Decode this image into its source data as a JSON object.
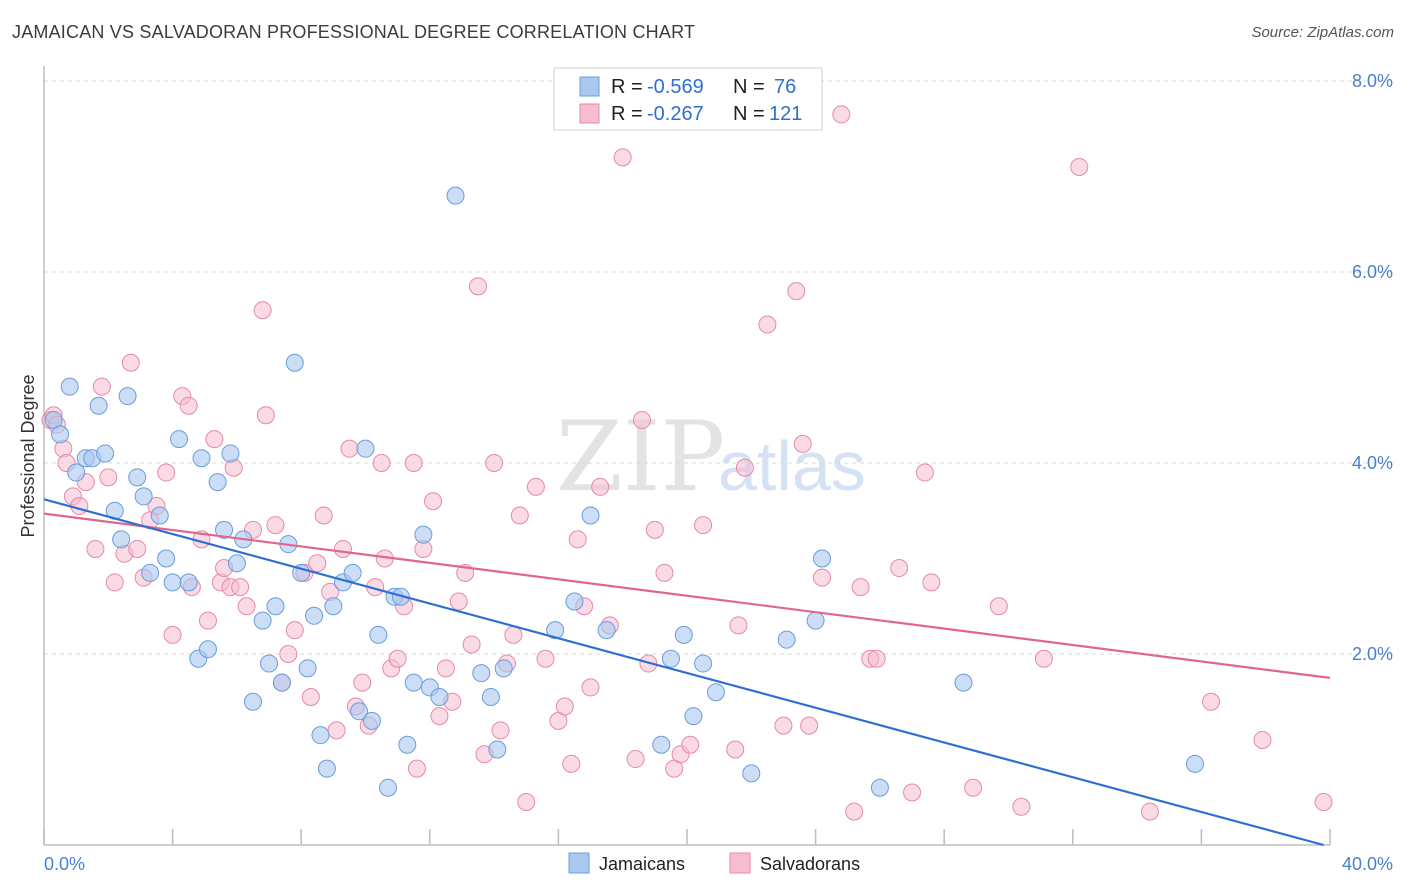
{
  "header": {
    "title": "JAMAICAN VS SALVADORAN PROFESSIONAL DEGREE CORRELATION CHART",
    "source": "Source: ZipAtlas.com"
  },
  "watermark": {
    "zip": "ZIP",
    "atlas": "atlas"
  },
  "legend": {
    "rows": [
      {
        "r_label": "R =",
        "r_value": "-0.569",
        "n_label": "N =",
        "n_value": "76",
        "color": "#a9c8f0"
      },
      {
        "r_label": "R =",
        "r_value": "-0.267",
        "n_label": "N =",
        "n_value": "121",
        "color": "#f6bcd0"
      }
    ]
  },
  "bottom_legend": {
    "jamaicans": "Jamaicans",
    "salvadorans": "Salvadorans"
  },
  "colors": {
    "jamaicans_fill": "#a9c8f0",
    "jamaicans_stroke": "#6a9ddc",
    "jamaicans_line": "#2f6fd1",
    "salvadorans_fill": "#f6bcd0",
    "salvadorans_stroke": "#e58aaa",
    "salvadorans_line": "#e06690",
    "tick_text": "#4a7fd0",
    "grid": "#d9d9d9"
  },
  "chart_data": {
    "type": "scatter",
    "title": "JAMAICAN VS SALVADORAN PROFESSIONAL DEGREE CORRELATION CHART",
    "xlabel": "",
    "ylabel": "Professional Degree",
    "xlim": [
      0,
      40
    ],
    "ylim": [
      0,
      8
    ],
    "x_tick_labels": [
      "0.0%",
      "40.0%"
    ],
    "y_ticks": [
      2,
      4,
      6,
      8
    ],
    "y_tick_labels": [
      "2.0%",
      "4.0%",
      "6.0%",
      "8.0%"
    ],
    "grid": true,
    "legend_position": "top-center",
    "series": [
      {
        "name": "Jamaicans",
        "r": -0.569,
        "n": 76,
        "trend": [
          [
            0,
            3.62
          ],
          [
            39.8,
            0.0
          ]
        ],
        "points": [
          [
            0.3,
            4.45
          ],
          [
            0.5,
            4.3
          ],
          [
            0.8,
            4.8
          ],
          [
            1.0,
            3.9
          ],
          [
            1.3,
            4.05
          ],
          [
            1.5,
            4.05
          ],
          [
            1.7,
            4.6
          ],
          [
            1.9,
            4.1
          ],
          [
            2.2,
            3.5
          ],
          [
            2.4,
            3.2
          ],
          [
            2.6,
            4.7
          ],
          [
            2.9,
            3.85
          ],
          [
            3.1,
            3.65
          ],
          [
            3.3,
            2.85
          ],
          [
            3.6,
            3.45
          ],
          [
            3.8,
            3.0
          ],
          [
            4.0,
            2.75
          ],
          [
            4.2,
            4.25
          ],
          [
            4.5,
            2.75
          ],
          [
            4.8,
            1.95
          ],
          [
            4.9,
            4.05
          ],
          [
            5.1,
            2.05
          ],
          [
            5.4,
            3.8
          ],
          [
            5.6,
            3.3
          ],
          [
            5.8,
            4.1
          ],
          [
            6.0,
            2.95
          ],
          [
            6.2,
            3.2
          ],
          [
            6.5,
            1.5
          ],
          [
            6.8,
            2.35
          ],
          [
            7.0,
            1.9
          ],
          [
            7.2,
            2.5
          ],
          [
            7.4,
            1.7
          ],
          [
            7.6,
            3.15
          ],
          [
            7.8,
            5.05
          ],
          [
            8.0,
            2.85
          ],
          [
            8.2,
            1.85
          ],
          [
            8.4,
            2.4
          ],
          [
            8.6,
            1.15
          ],
          [
            8.8,
            0.8
          ],
          [
            9.0,
            2.5
          ],
          [
            9.3,
            2.75
          ],
          [
            9.6,
            2.85
          ],
          [
            9.8,
            1.4
          ],
          [
            10.0,
            4.15
          ],
          [
            10.2,
            1.3
          ],
          [
            10.4,
            2.2
          ],
          [
            10.7,
            0.6
          ],
          [
            10.9,
            2.6
          ],
          [
            11.1,
            2.6
          ],
          [
            11.3,
            1.05
          ],
          [
            11.5,
            1.7
          ],
          [
            11.8,
            3.25
          ],
          [
            12.0,
            1.65
          ],
          [
            12.3,
            1.55
          ],
          [
            12.8,
            6.8
          ],
          [
            13.6,
            1.8
          ],
          [
            13.9,
            1.55
          ],
          [
            14.1,
            1.0
          ],
          [
            14.3,
            1.85
          ],
          [
            15.9,
            2.25
          ],
          [
            16.5,
            2.55
          ],
          [
            17.0,
            3.45
          ],
          [
            17.5,
            2.25
          ],
          [
            19.2,
            1.05
          ],
          [
            19.5,
            1.95
          ],
          [
            19.9,
            2.2
          ],
          [
            20.2,
            1.35
          ],
          [
            20.5,
            1.9
          ],
          [
            20.9,
            1.6
          ],
          [
            22.0,
            0.75
          ],
          [
            23.1,
            2.15
          ],
          [
            24.0,
            2.35
          ],
          [
            24.2,
            3.0
          ],
          [
            26.0,
            0.6
          ],
          [
            28.6,
            1.7
          ],
          [
            35.8,
            0.85
          ]
        ]
      },
      {
        "name": "Salvadorans",
        "r": -0.267,
        "n": 121,
        "trend": [
          [
            0,
            3.47
          ],
          [
            40,
            1.75
          ]
        ],
        "points": [
          [
            0.2,
            4.45
          ],
          [
            0.3,
            4.5
          ],
          [
            0.4,
            4.4
          ],
          [
            0.6,
            4.15
          ],
          [
            0.7,
            4.0
          ],
          [
            0.9,
            3.65
          ],
          [
            1.1,
            3.55
          ],
          [
            1.3,
            3.8
          ],
          [
            1.6,
            3.1
          ],
          [
            1.8,
            4.8
          ],
          [
            2.0,
            3.85
          ],
          [
            2.2,
            2.75
          ],
          [
            2.5,
            3.05
          ],
          [
            2.7,
            5.05
          ],
          [
            2.9,
            3.1
          ],
          [
            3.1,
            2.8
          ],
          [
            3.3,
            3.4
          ],
          [
            3.5,
            3.55
          ],
          [
            3.8,
            3.9
          ],
          [
            4.0,
            2.2
          ],
          [
            4.3,
            4.7
          ],
          [
            4.5,
            4.6
          ],
          [
            4.6,
            2.7
          ],
          [
            4.9,
            3.2
          ],
          [
            5.1,
            2.35
          ],
          [
            5.3,
            4.25
          ],
          [
            5.5,
            2.75
          ],
          [
            5.6,
            2.9
          ],
          [
            5.8,
            2.7
          ],
          [
            5.9,
            3.95
          ],
          [
            6.1,
            2.7
          ],
          [
            6.3,
            2.5
          ],
          [
            6.5,
            3.3
          ],
          [
            6.8,
            5.6
          ],
          [
            6.9,
            4.5
          ],
          [
            7.2,
            3.35
          ],
          [
            7.4,
            1.7
          ],
          [
            7.6,
            2.0
          ],
          [
            7.8,
            2.25
          ],
          [
            8.1,
            2.85
          ],
          [
            8.3,
            1.55
          ],
          [
            8.5,
            2.95
          ],
          [
            8.7,
            3.45
          ],
          [
            8.9,
            2.65
          ],
          [
            9.1,
            1.2
          ],
          [
            9.3,
            3.1
          ],
          [
            9.5,
            4.15
          ],
          [
            9.7,
            1.45
          ],
          [
            9.9,
            1.7
          ],
          [
            10.1,
            1.25
          ],
          [
            10.3,
            2.7
          ],
          [
            10.5,
            4.0
          ],
          [
            10.6,
            3.0
          ],
          [
            10.8,
            1.85
          ],
          [
            11.0,
            1.95
          ],
          [
            11.2,
            2.5
          ],
          [
            11.5,
            4.0
          ],
          [
            11.6,
            0.8
          ],
          [
            11.8,
            3.1
          ],
          [
            12.1,
            3.6
          ],
          [
            12.3,
            1.35
          ],
          [
            12.5,
            1.85
          ],
          [
            12.7,
            1.5
          ],
          [
            12.9,
            2.55
          ],
          [
            13.1,
            2.85
          ],
          [
            13.3,
            2.1
          ],
          [
            13.5,
            5.85
          ],
          [
            13.7,
            0.95
          ],
          [
            14.0,
            4.0
          ],
          [
            14.2,
            1.2
          ],
          [
            14.4,
            1.9
          ],
          [
            14.6,
            2.2
          ],
          [
            14.8,
            3.45
          ],
          [
            15.0,
            0.45
          ],
          [
            15.3,
            3.75
          ],
          [
            15.6,
            1.95
          ],
          [
            16.0,
            1.3
          ],
          [
            16.2,
            1.45
          ],
          [
            16.4,
            0.85
          ],
          [
            16.6,
            3.2
          ],
          [
            16.8,
            2.5
          ],
          [
            17.0,
            1.65
          ],
          [
            17.3,
            3.75
          ],
          [
            17.6,
            2.3
          ],
          [
            18.0,
            7.2
          ],
          [
            18.4,
            0.9
          ],
          [
            18.6,
            4.45
          ],
          [
            18.8,
            1.9
          ],
          [
            19.0,
            3.3
          ],
          [
            19.3,
            2.85
          ],
          [
            19.6,
            0.8
          ],
          [
            19.8,
            0.95
          ],
          [
            20.1,
            1.05
          ],
          [
            20.5,
            3.35
          ],
          [
            21.5,
            1.0
          ],
          [
            21.6,
            2.3
          ],
          [
            21.8,
            3.95
          ],
          [
            22.5,
            5.45
          ],
          [
            23.0,
            1.25
          ],
          [
            23.4,
            5.8
          ],
          [
            23.6,
            4.2
          ],
          [
            23.8,
            1.25
          ],
          [
            24.2,
            2.8
          ],
          [
            24.8,
            7.65
          ],
          [
            25.2,
            0.35
          ],
          [
            25.4,
            2.7
          ],
          [
            25.7,
            1.95
          ],
          [
            25.9,
            1.95
          ],
          [
            26.6,
            2.9
          ],
          [
            27.0,
            0.55
          ],
          [
            27.4,
            3.9
          ],
          [
            27.6,
            2.75
          ],
          [
            28.9,
            0.6
          ],
          [
            29.7,
            2.5
          ],
          [
            30.4,
            0.4
          ],
          [
            31.1,
            1.95
          ],
          [
            32.2,
            7.1
          ],
          [
            34.4,
            0.35
          ],
          [
            36.3,
            1.5
          ],
          [
            37.9,
            1.1
          ],
          [
            39.8,
            0.45
          ]
        ]
      }
    ]
  }
}
